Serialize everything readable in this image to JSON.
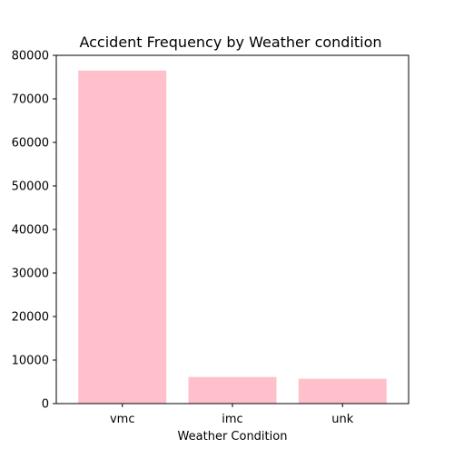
{
  "chart_data": {
    "type": "bar",
    "title": "Accident Frequency by Weather condition",
    "xlabel": "Weather Condition",
    "ylabel": "",
    "categories": [
      "vmc",
      "imc",
      "unk"
    ],
    "values": [
      76500,
      6100,
      5700
    ],
    "ylim": [
      0,
      80000
    ],
    "yticks": [
      0,
      10000,
      20000,
      30000,
      40000,
      50000,
      60000,
      70000,
      80000
    ],
    "grid": false,
    "bar_color": "#ffc0cb",
    "axis_color": "#000000"
  }
}
